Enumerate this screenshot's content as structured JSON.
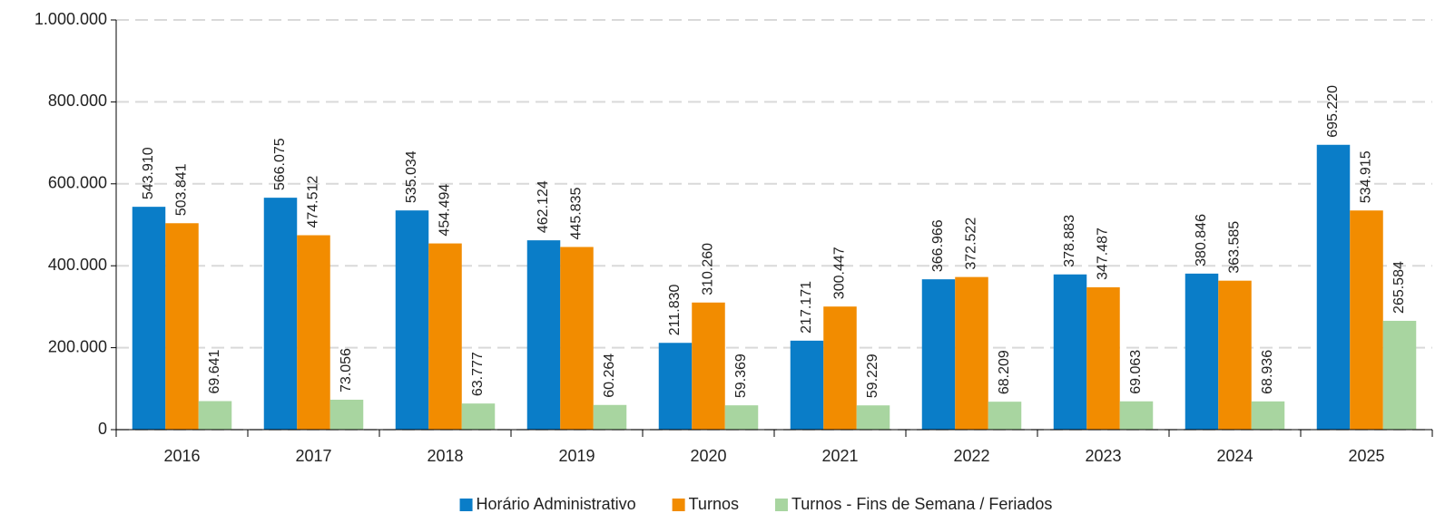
{
  "chart_data": {
    "type": "bar",
    "categories": [
      "2016",
      "2017",
      "2018",
      "2019",
      "2020",
      "2021",
      "2022",
      "2023",
      "2024",
      "2025"
    ],
    "series": [
      {
        "name": "Horário Administrativo",
        "color": "#0a7dc8",
        "values": [
          543910,
          566075,
          535034,
          462124,
          211830,
          217171,
          366966,
          378883,
          380846,
          695220
        ],
        "value_labels": [
          "543.910",
          "566.075",
          "535.034",
          "462.124",
          "211.830",
          "217.171",
          "366.966",
          "378.883",
          "380.846",
          "695.220"
        ]
      },
      {
        "name": "Turnos",
        "color": "#f28c00",
        "values": [
          503841,
          474512,
          454494,
          445835,
          310260,
          300447,
          372522,
          347487,
          363585,
          534915
        ],
        "value_labels": [
          "503.841",
          "474.512",
          "454.494",
          "445.835",
          "310.260",
          "300.447",
          "372.522",
          "347.487",
          "363.585",
          "534.915"
        ]
      },
      {
        "name": "Turnos - Fins de Semana / Feriados",
        "color": "#a8d5a0",
        "values": [
          69641,
          73056,
          63777,
          60264,
          59369,
          59229,
          68209,
          69063,
          68936,
          265584
        ],
        "value_labels": [
          "69.641",
          "73.056",
          "63.777",
          "60.264",
          "59.369",
          "59.229",
          "68.209",
          "69.063",
          "68.936",
          "265.584"
        ]
      }
    ],
    "ylim": [
      0,
      1000000
    ],
    "yticks": [
      0,
      {
        "value": 200000,
        "label": "200.000"
      },
      {
        "value": 400000,
        "label": "400.000"
      },
      {
        "value": 600000,
        "label": "600.000"
      },
      {
        "value": 800000,
        "label": "800.000"
      },
      {
        "value": 1000000,
        "label": "1.000.000"
      }
    ],
    "grid": true,
    "legend": "bottom"
  }
}
